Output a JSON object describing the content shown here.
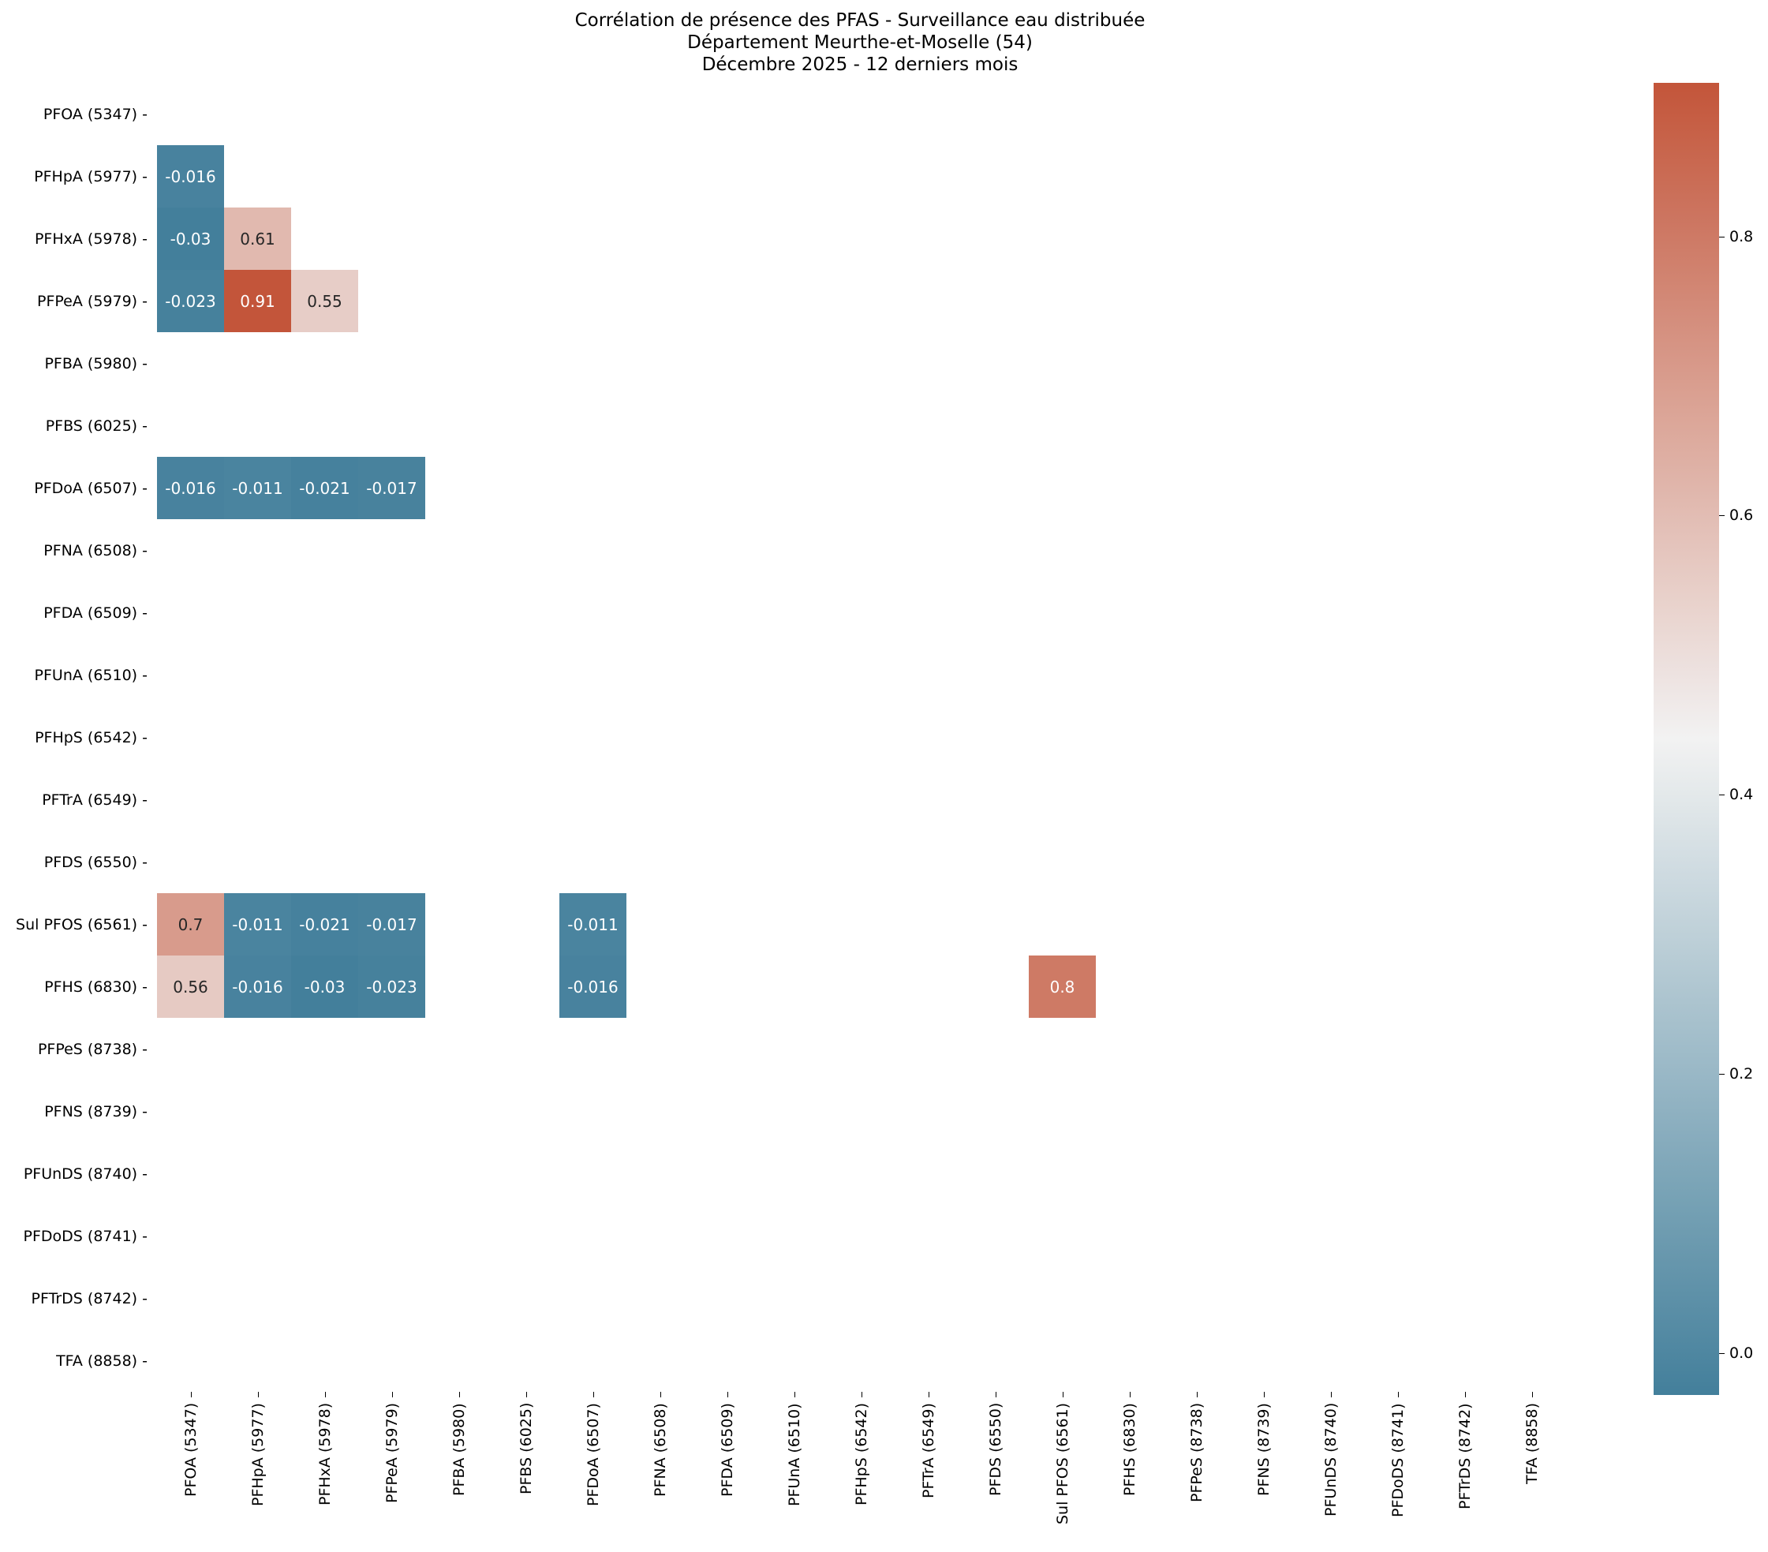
{
  "chart_data": {
    "type": "heatmap",
    "title": "Corrélation de présence des PFAS - Surveillance eau distribuée\nDépartement Meurthe-et-Moselle (54)\nDécembre 2025 - 12 derniers mois",
    "title_lines": [
      "Corrélation de présence des PFAS - Surveillance eau distribuée",
      "Département Meurthe-et-Moselle (54)",
      "Décembre 2025 - 12 derniers mois"
    ],
    "xlabel": "",
    "ylabel": "",
    "labels": [
      "PFOA (5347)",
      "PFHpA (5977)",
      "PFHxA (5978)",
      "PFPeA (5979)",
      "PFBA (5980)",
      "PFBS (6025)",
      "PFDoA (6507)",
      "PFNA (6508)",
      "PFDA (6509)",
      "PFUnA (6510)",
      "PFHpS (6542)",
      "PFTrA (6549)",
      "PFDS (6550)",
      "Sul PFOS (6561)",
      "PFHS (6830)",
      "PFPeS (8738)",
      "PFNS (8739)",
      "PFUnDS (8740)",
      "PFDoDS (8741)",
      "PFTrDS (8742)",
      "TFA (8858)"
    ],
    "mask": "upper triangle and diagonal masked; rows/columns with undefined correlation blank",
    "cells": [
      {
        "row": "PFHpA (5977)",
        "col": "PFOA (5347)",
        "value": -0.016,
        "text": "-0.016"
      },
      {
        "row": "PFHxA (5978)",
        "col": "PFOA (5347)",
        "value": -0.03,
        "text": "-0.03"
      },
      {
        "row": "PFHxA (5978)",
        "col": "PFHpA (5977)",
        "value": 0.61,
        "text": "0.61"
      },
      {
        "row": "PFPeA (5979)",
        "col": "PFOA (5347)",
        "value": -0.023,
        "text": "-0.023"
      },
      {
        "row": "PFPeA (5979)",
        "col": "PFHpA (5977)",
        "value": 0.91,
        "text": "0.91"
      },
      {
        "row": "PFPeA (5979)",
        "col": "PFHxA (5978)",
        "value": 0.55,
        "text": "0.55"
      },
      {
        "row": "PFDoA (6507)",
        "col": "PFOA (5347)",
        "value": -0.016,
        "text": "-0.016"
      },
      {
        "row": "PFDoA (6507)",
        "col": "PFHpA (5977)",
        "value": -0.011,
        "text": "-0.011"
      },
      {
        "row": "PFDoA (6507)",
        "col": "PFHxA (5978)",
        "value": -0.021,
        "text": "-0.021"
      },
      {
        "row": "PFDoA (6507)",
        "col": "PFPeA (5979)",
        "value": -0.017,
        "text": "-0.017"
      },
      {
        "row": "Sul PFOS (6561)",
        "col": "PFOA (5347)",
        "value": 0.7,
        "text": "0.7"
      },
      {
        "row": "Sul PFOS (6561)",
        "col": "PFHpA (5977)",
        "value": -0.011,
        "text": "-0.011"
      },
      {
        "row": "Sul PFOS (6561)",
        "col": "PFHxA (5978)",
        "value": -0.021,
        "text": "-0.021"
      },
      {
        "row": "Sul PFOS (6561)",
        "col": "PFPeA (5979)",
        "value": -0.017,
        "text": "-0.017"
      },
      {
        "row": "Sul PFOS (6561)",
        "col": "PFDoA (6507)",
        "value": -0.011,
        "text": "-0.011"
      },
      {
        "row": "PFHS (6830)",
        "col": "PFOA (5347)",
        "value": 0.56,
        "text": "0.56"
      },
      {
        "row": "PFHS (6830)",
        "col": "PFHpA (5977)",
        "value": -0.016,
        "text": "-0.016"
      },
      {
        "row": "PFHS (6830)",
        "col": "PFHxA (5978)",
        "value": -0.03,
        "text": "-0.03"
      },
      {
        "row": "PFHS (6830)",
        "col": "PFPeA (5979)",
        "value": -0.023,
        "text": "-0.023"
      },
      {
        "row": "PFHS (6830)",
        "col": "PFDoA (6507)",
        "value": -0.016,
        "text": "-0.016"
      },
      {
        "row": "PFHS (6830)",
        "col": "Sul PFOS (6561)",
        "value": 0.8,
        "text": "0.8"
      }
    ],
    "colorbar": {
      "vmin": -0.03,
      "vmax": 0.91,
      "ticks": [
        0.0,
        0.2,
        0.4,
        0.6,
        0.8
      ],
      "tick_labels": [
        "0.0",
        "0.2",
        "0.4",
        "0.6",
        "0.8"
      ],
      "colors": {
        "low": "#437f9b",
        "mid": "#f2f2f2",
        "high": "#c3553a"
      }
    },
    "grid": false,
    "legend_position": "right (colorbar)"
  }
}
